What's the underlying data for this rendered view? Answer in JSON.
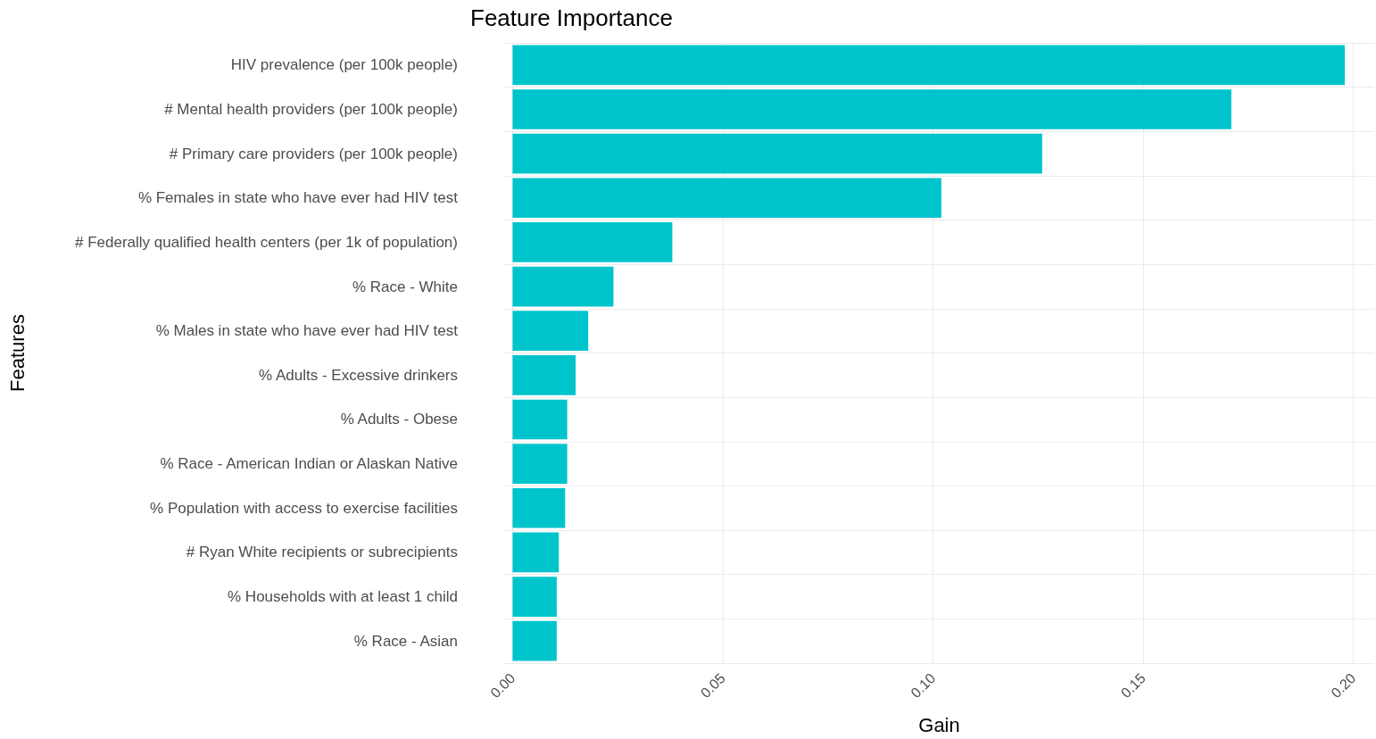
{
  "chart_data": {
    "type": "bar",
    "orientation": "horizontal",
    "title": "Feature Importance",
    "xlabel": "Gain",
    "ylabel": "Features",
    "categories": [
      "HIV prevalence (per 100k people)",
      "# Mental health providers (per 100k people)",
      "# Primary care providers (per 100k people)",
      "% Females in state who have ever had HIV test",
      "# Federally qualified health centers (per 1k of population)",
      "% Race - White",
      "% Males in state who have ever had HIV test",
      "% Adults - Excessive drinkers",
      "% Adults - Obese",
      "% Race - American Indian or Alaskan Native",
      "% Population with access to exercise facilities",
      "# Ryan White recipients or subrecipients",
      "% Households with at least 1 child",
      "% Race - Asian"
    ],
    "values": [
      0.198,
      0.171,
      0.126,
      0.102,
      0.038,
      0.024,
      0.018,
      0.015,
      0.013,
      0.013,
      0.0125,
      0.011,
      0.0105,
      0.0105
    ],
    "color": "#00c4cc",
    "xlim": [
      -0.002,
      0.205
    ],
    "xticks": [
      {
        "value": 0,
        "label": "0.00"
      },
      {
        "value": 0.05,
        "label": "0.05"
      },
      {
        "value": 0.1,
        "label": "0.10"
      },
      {
        "value": 0.15,
        "label": "0.15"
      },
      {
        "value": 0.2,
        "label": "0.20"
      }
    ],
    "grid": true
  }
}
